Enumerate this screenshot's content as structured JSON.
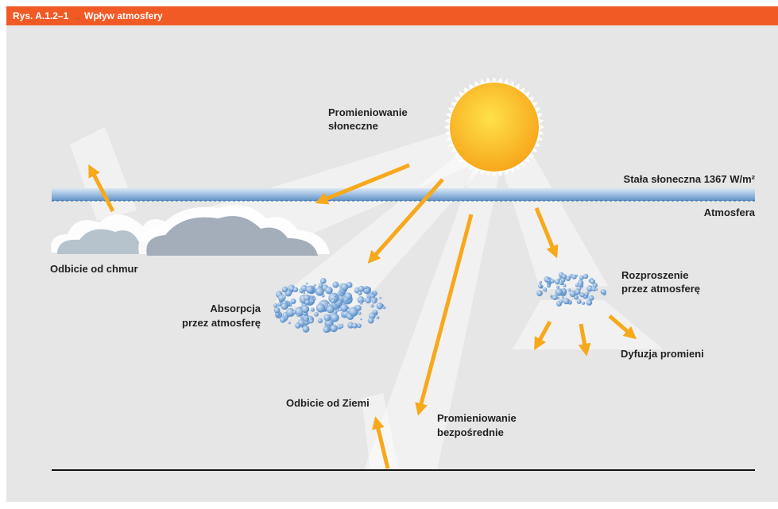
{
  "header": {
    "figure": "Rys. A.1.2–1",
    "title": "Wpływ atmosfery"
  },
  "labels": {
    "solar": [
      "Promieniowanie",
      "słoneczne"
    ],
    "constant": "Stała słoneczna 1367 W/m²",
    "atmosphere": "Atmosfera",
    "cloud_reflection": "Odbicie od chmur",
    "absorption": [
      "Absorpcja",
      "przez atmosferę"
    ],
    "scattering": [
      "Rozproszenie",
      "przez atmosferę"
    ],
    "diffusion": "Dyfuzja promieni",
    "ground_reflection": "Odbicie od Ziemi",
    "direct": [
      "Promieniowanie",
      "bezpośrednie"
    ]
  }
}
